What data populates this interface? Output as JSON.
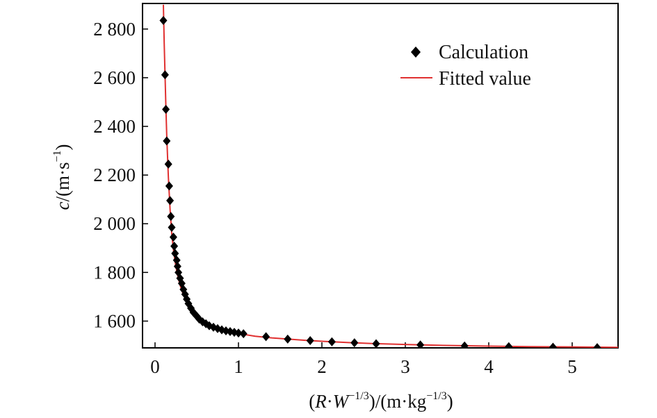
{
  "chart_data": {
    "type": "scatter",
    "xlabel_parts": {
      "open": "(",
      "R": "R",
      "dot1": "·",
      "W": "W",
      "exp1": "−1/3",
      "mid": ")/(m·kg",
      "exp2": "−1/3",
      "close": ")"
    },
    "ylabel_parts": {
      "c": "c",
      "rest": "/(m·s",
      "exp": "−1",
      "close": ")"
    },
    "xlim": [
      -0.15,
      5.55
    ],
    "ylim": [
      1490,
      2905
    ],
    "x_ticks": [
      0,
      1,
      2,
      3,
      4,
      5
    ],
    "x_tick_labels": [
      "0",
      "1",
      "2",
      "3",
      "4",
      "5"
    ],
    "y_ticks": [
      1600,
      1800,
      2000,
      2200,
      2400,
      2600,
      2800
    ],
    "y_tick_labels": [
      "1 600",
      "1 800",
      "2 000",
      "2 200",
      "2 400",
      "2 600",
      "2 800"
    ],
    "grid": false,
    "legend_position": "top-right",
    "series": [
      {
        "name": "Calculation",
        "kind": "scatter",
        "marker": "diamond",
        "color": "#000000",
        "x": [
          0.1,
          0.12,
          0.13,
          0.14,
          0.16,
          0.17,
          0.18,
          0.19,
          0.2,
          0.22,
          0.23,
          0.24,
          0.26,
          0.27,
          0.28,
          0.3,
          0.32,
          0.34,
          0.36,
          0.38,
          0.4,
          0.43,
          0.46,
          0.5,
          0.53,
          0.57,
          0.61,
          0.65,
          0.7,
          0.75,
          0.8,
          0.85,
          0.9,
          0.95,
          1.0,
          1.06,
          1.33,
          1.59,
          1.86,
          2.12,
          2.39,
          2.65,
          3.18,
          3.71,
          4.24,
          4.77,
          5.3
        ],
        "y": [
          2835,
          2612,
          2470,
          2340,
          2245,
          2155,
          2095,
          2030,
          1985,
          1945,
          1908,
          1878,
          1850,
          1825,
          1800,
          1776,
          1755,
          1730,
          1710,
          1690,
          1672,
          1653,
          1636,
          1620,
          1608,
          1597,
          1589,
          1581,
          1575,
          1569,
          1564,
          1560,
          1557,
          1554,
          1551,
          1548,
          1536,
          1526,
          1520,
          1515,
          1511,
          1507,
          1502,
          1498,
          1495,
          1493,
          1491
        ]
      },
      {
        "name": "Fitted value",
        "kind": "line",
        "color": "#e03030",
        "x": [
          0.1,
          0.11,
          0.12,
          0.13,
          0.14,
          0.15,
          0.16,
          0.18,
          0.2,
          0.22,
          0.24,
          0.26,
          0.28,
          0.3,
          0.33,
          0.36,
          0.4,
          0.45,
          0.5,
          0.55,
          0.6,
          0.7,
          0.8,
          0.9,
          1.0,
          1.2,
          1.4,
          1.6,
          1.8,
          2.0,
          2.3,
          2.6,
          3.0,
          3.5,
          4.0,
          4.5,
          5.0,
          5.55
        ],
        "y": [
          2900,
          2740,
          2610,
          2480,
          2365,
          2275,
          2190,
          2060,
          1960,
          1895,
          1845,
          1805,
          1775,
          1748,
          1718,
          1694,
          1665,
          1638,
          1618,
          1603,
          1592,
          1575,
          1563,
          1555,
          1549,
          1538,
          1531,
          1526,
          1521,
          1517,
          1512,
          1508,
          1504,
          1500,
          1497,
          1495,
          1494,
          1492
        ]
      }
    ]
  }
}
